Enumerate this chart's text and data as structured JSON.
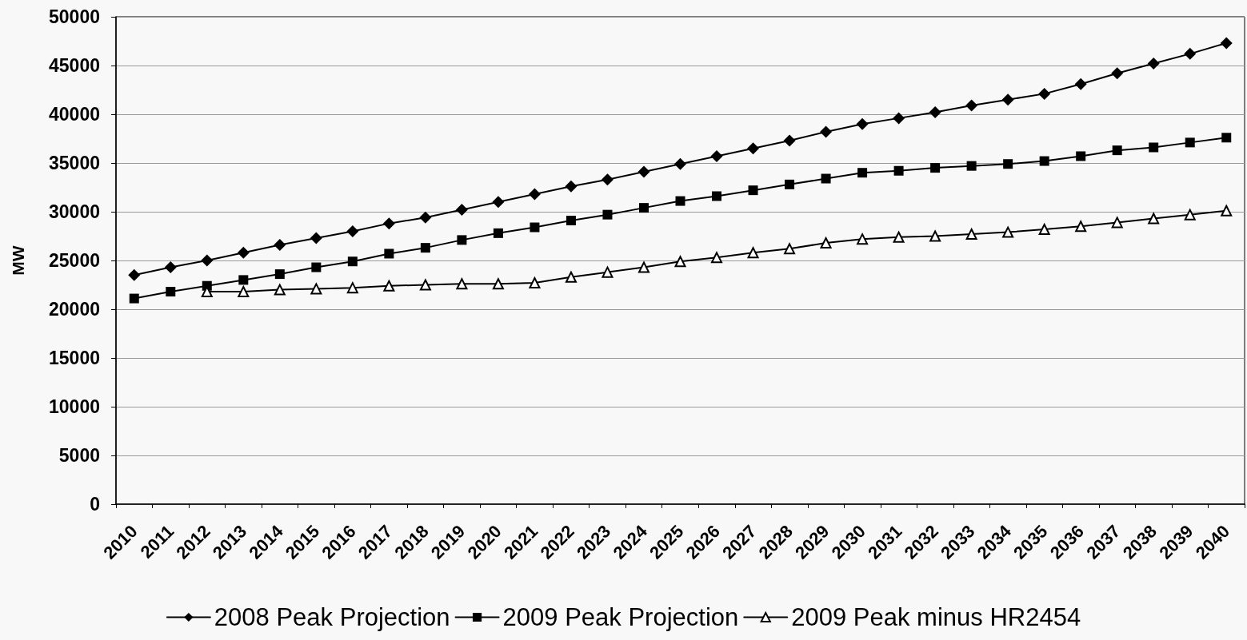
{
  "chart_data": {
    "type": "line",
    "ylabel": "MW",
    "categories": [
      "2010",
      "2011",
      "2012",
      "2013",
      "2014",
      "2015",
      "2016",
      "2017",
      "2018",
      "2019",
      "2020",
      "2021",
      "2022",
      "2023",
      "2024",
      "2025",
      "2026",
      "2027",
      "2028",
      "2029",
      "2030",
      "2031",
      "2032",
      "2033",
      "2034",
      "2035",
      "2036",
      "2037",
      "2038",
      "2039",
      "2040"
    ],
    "series": [
      {
        "name": "2008 Peak Projection",
        "color": "#000000",
        "marker": "diamond",
        "values": [
          23500,
          24300,
          25000,
          25800,
          26600,
          27300,
          28000,
          28800,
          29400,
          30200,
          31000,
          31800,
          32600,
          33300,
          34100,
          34900,
          35700,
          36500,
          37300,
          38200,
          39000,
          39600,
          40200,
          40900,
          41500,
          42100,
          43100,
          44200,
          45200,
          46200,
          47300
        ]
      },
      {
        "name": "2009 Peak Projection",
        "color": "#000000",
        "marker": "square",
        "values": [
          21100,
          21800,
          22400,
          23000,
          23600,
          24300,
          24900,
          25700,
          26300,
          27100,
          27800,
          28400,
          29100,
          29700,
          30400,
          31100,
          31600,
          32200,
          32800,
          33400,
          34000,
          34200,
          34500,
          34700,
          34900,
          35200,
          35700,
          36300,
          36600,
          37100,
          37600
        ]
      },
      {
        "name": "2009 Peak minus HR2454",
        "color": "#000000",
        "marker": "triangle",
        "values": [
          null,
          null,
          21800,
          21800,
          22000,
          22100,
          22200,
          22400,
          22500,
          22600,
          22600,
          22700,
          23300,
          23800,
          24300,
          24900,
          25300,
          25800,
          26200,
          26800,
          27200,
          27400,
          27500,
          27700,
          27900,
          28200,
          28500,
          28900,
          29300,
          29700,
          30100
        ]
      }
    ],
    "ylim": [
      0,
      50000
    ],
    "yticks": [
      0,
      5000,
      10000,
      15000,
      20000,
      25000,
      30000,
      35000,
      40000,
      45000,
      50000
    ],
    "grid": "y",
    "legend": "bottom"
  }
}
